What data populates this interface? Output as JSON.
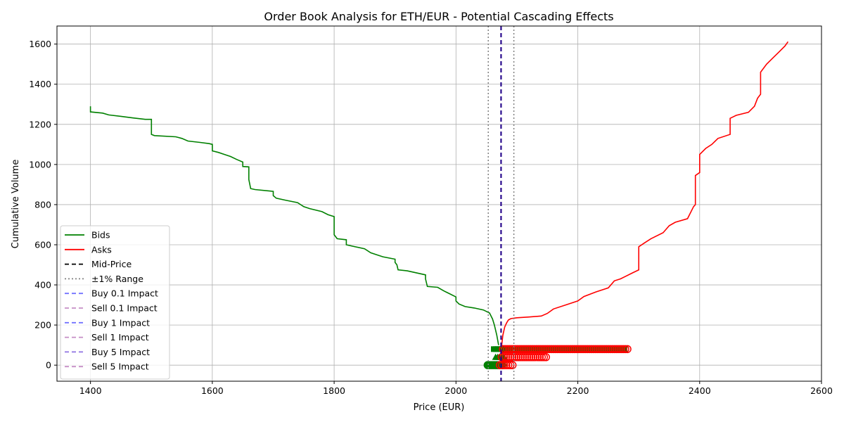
{
  "chart_data": {
    "type": "line",
    "title": "Order Book Analysis for ETH/EUR - Potential Cascading Effects",
    "xlabel": "Price (EUR)",
    "ylabel": "Cumulative Volume",
    "xlim": [
      1345,
      2600
    ],
    "ylim": [
      -80,
      1690
    ],
    "xticks": [
      1400,
      1600,
      1800,
      2000,
      2200,
      2400,
      2600
    ],
    "yticks": [
      0,
      200,
      400,
      600,
      800,
      1000,
      1200,
      1400,
      1600
    ],
    "grid": true,
    "legend_position": "lower-left",
    "mid_price": 2074,
    "range_lines": [
      2053,
      2095
    ],
    "series": [
      {
        "name": "Bids",
        "color": "#008000",
        "style": "solid",
        "x": [
          1400,
          1400,
          1420,
          1430,
          1450,
          1470,
          1490,
          1500,
          1500,
          1505,
          1540,
          1550,
          1560,
          1580,
          1595,
          1600,
          1600,
          1610,
          1620,
          1630,
          1640,
          1650,
          1650,
          1660,
          1660,
          1663,
          1670,
          1700,
          1700,
          1705,
          1720,
          1740,
          1750,
          1760,
          1780,
          1790,
          1800,
          1800,
          1805,
          1820,
          1820,
          1830,
          1850,
          1860,
          1870,
          1880,
          1900,
          1900,
          1903,
          1905,
          1920,
          1950,
          1950,
          1953,
          1970,
          1980,
          1990,
          2000,
          2000,
          2005,
          2015,
          2030,
          2045,
          2055,
          2060,
          2063,
          2067,
          2070
        ],
        "y": [
          1290,
          1262,
          1256,
          1247,
          1240,
          1232,
          1225,
          1225,
          1150,
          1144,
          1138,
          1130,
          1117,
          1110,
          1104,
          1100,
          1068,
          1060,
          1050,
          1040,
          1025,
          1012,
          990,
          988,
          925,
          880,
          875,
          866,
          845,
          832,
          822,
          810,
          790,
          780,
          765,
          750,
          740,
          650,
          630,
          625,
          600,
          593,
          580,
          560,
          550,
          540,
          528,
          512,
          500,
          475,
          470,
          450,
          430,
          392,
          388,
          370,
          355,
          340,
          320,
          305,
          292,
          285,
          275,
          260,
          230,
          200,
          150,
          100
        ]
      },
      {
        "name": "Asks",
        "color": "#ff0000",
        "style": "solid",
        "x": [
          2075,
          2077,
          2080,
          2083,
          2086,
          2090,
          2100,
          2120,
          2140,
          2150,
          2160,
          2180,
          2200,
          2210,
          2230,
          2250,
          2260,
          2270,
          2290,
          2300,
          2300,
          2310,
          2320,
          2340,
          2350,
          2360,
          2380,
          2390,
          2393,
          2393,
          2400,
          2400,
          2410,
          2420,
          2430,
          2450,
          2450,
          2460,
          2480,
          2490,
          2495,
          2500,
          2500,
          2510,
          2520,
          2530,
          2540,
          2545
        ],
        "y": [
          100,
          150,
          190,
          210,
          225,
          232,
          236,
          240,
          245,
          258,
          280,
          300,
          320,
          342,
          365,
          385,
          420,
          430,
          460,
          475,
          590,
          610,
          630,
          660,
          695,
          712,
          730,
          790,
          800,
          945,
          960,
          1050,
          1080,
          1100,
          1130,
          1150,
          1230,
          1245,
          1260,
          1290,
          1330,
          1350,
          1460,
          1500,
          1530,
          1560,
          1590,
          1612
        ]
      }
    ],
    "impact_lines": [
      {
        "name": "Mid-Price",
        "color": "#000000",
        "dash": "6,4",
        "opacity": 1
      },
      {
        "name": "±1% Range",
        "color": "#808080",
        "dash": "2,3",
        "opacity": 1
      },
      {
        "name": "Buy 0.1 Impact",
        "color": "#0000ff",
        "dash": "6,4",
        "opacity": 0.55
      },
      {
        "name": "Sell 0.1 Impact",
        "color": "#993399",
        "dash": "6,4",
        "opacity": 0.55
      },
      {
        "name": "Buy 1 Impact",
        "color": "#0000ff",
        "dash": "6,4",
        "opacity": 0.55
      },
      {
        "name": "Sell 1 Impact",
        "color": "#993399",
        "dash": "6,4",
        "opacity": 0.55
      },
      {
        "name": "Buy 5 Impact",
        "color": "#3300cc",
        "dash": "6,4",
        "opacity": 0.55
      },
      {
        "name": "Sell 5 Impact",
        "color": "#993399",
        "dash": "6,4",
        "opacity": 0.55
      }
    ],
    "markers": [
      {
        "series": "bid-depth",
        "color": "#008000",
        "shape": "square",
        "y": 80,
        "x_from": 2062,
        "x_to": 2278
      },
      {
        "series": "ask-depth",
        "color": "#ff0000",
        "shape": "circle",
        "y": 80,
        "x_from": 2077,
        "x_to": 2283
      },
      {
        "series": "bid-depth",
        "color": "#008000",
        "shape": "triangle",
        "y": 40,
        "x_from": 2065,
        "x_to": 2082
      },
      {
        "series": "ask-depth",
        "color": "#ff0000",
        "shape": "circle",
        "y": 40,
        "x_from": 2075,
        "x_to": 2150
      },
      {
        "series": "bid-depth",
        "color": "#008000",
        "shape": "circle",
        "y": 0,
        "x_from": 2052,
        "x_to": 2078
      },
      {
        "series": "ask-depth",
        "color": "#ff0000",
        "shape": "circle",
        "y": 0,
        "x_from": 2072,
        "x_to": 2095
      }
    ]
  }
}
